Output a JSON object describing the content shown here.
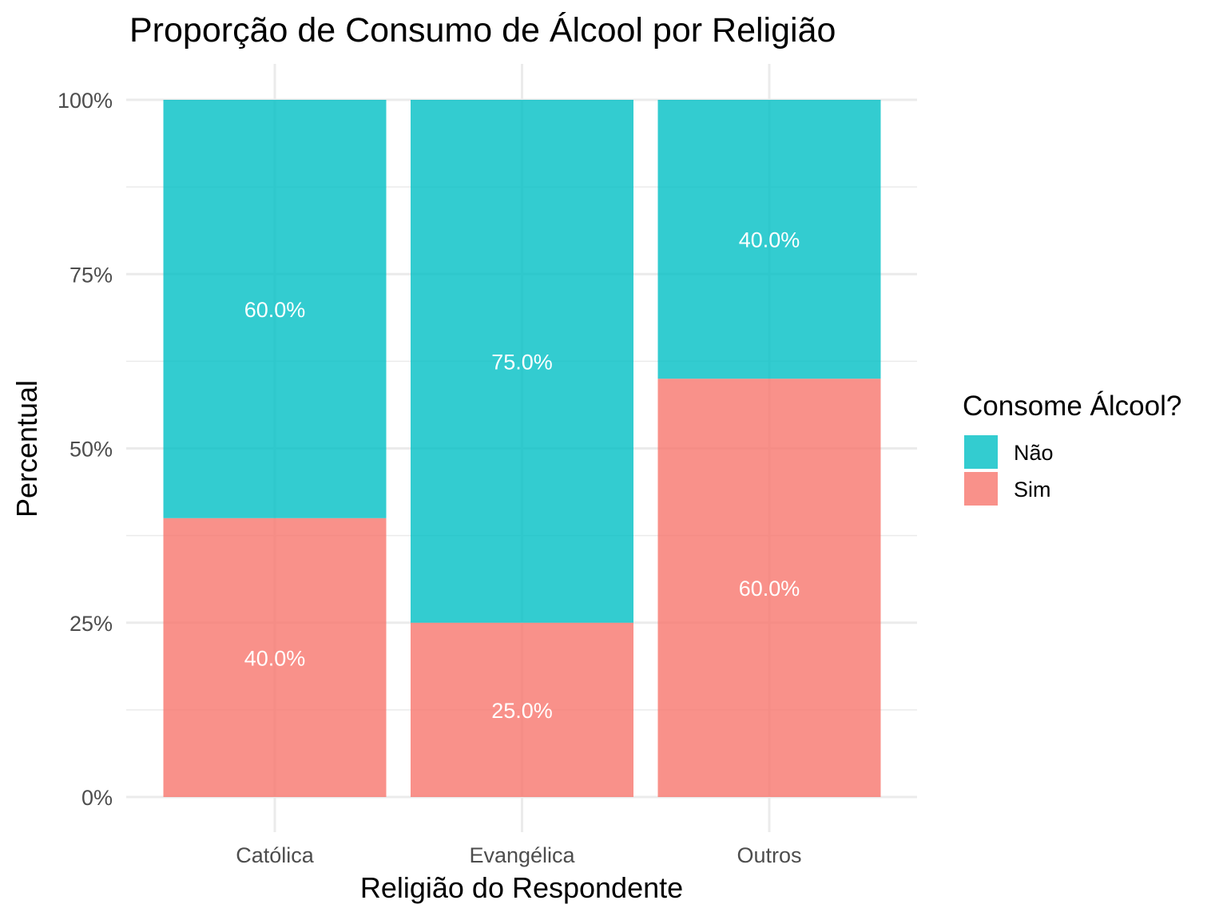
{
  "chart_data": {
    "type": "bar",
    "stacked": true,
    "title": "Proporção de Consumo de Álcool por Religião",
    "xlabel": "Religião do Respondente",
    "ylabel": "Percentual",
    "categories": [
      "Católica",
      "Evangélica",
      "Outros"
    ],
    "ylim": [
      0,
      1
    ],
    "y_ticks": [
      0,
      0.25,
      0.5,
      0.75,
      1
    ],
    "y_tick_labels": [
      "0%",
      "25%",
      "50%",
      "75%",
      "100%"
    ],
    "grid": true,
    "series": [
      {
        "name": "Sim",
        "color": "#F8766D",
        "values": [
          0.4,
          0.25,
          0.6
        ],
        "labels": [
          "40.0%",
          "25.0%",
          "60.0%"
        ]
      },
      {
        "name": "Não",
        "color": "#00BFC4",
        "values": [
          0.6,
          0.75,
          0.4
        ],
        "labels": [
          "60.0%",
          "75.0%",
          "40.0%"
        ]
      }
    ],
    "legend": {
      "title": "Consome Álcool?",
      "position": "right",
      "entries": [
        "Não",
        "Sim"
      ]
    }
  }
}
